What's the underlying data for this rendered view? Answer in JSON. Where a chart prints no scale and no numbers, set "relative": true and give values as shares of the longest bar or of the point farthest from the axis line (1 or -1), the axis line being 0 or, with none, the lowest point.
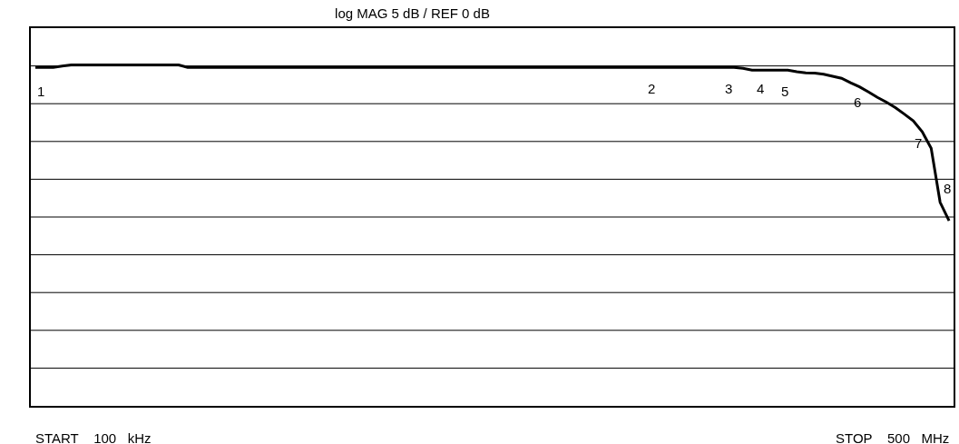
{
  "chart_data": {
    "type": "line",
    "title": "log MAG 5 dB / REF 0 dB",
    "relative": true,
    "categories": [
      null,
      null,
      null,
      null,
      null,
      null,
      null,
      null,
      null,
      null,
      null,
      null,
      null,
      null,
      null,
      null,
      null,
      null,
      null,
      null,
      null,
      null,
      null,
      null,
      null,
      null,
      null,
      null,
      null,
      null,
      null,
      null,
      null,
      null,
      null,
      null,
      null,
      null,
      null,
      null,
      null,
      null,
      null,
      null,
      null,
      null,
      null,
      null,
      null,
      null,
      null,
      null,
      null,
      null,
      null,
      null,
      null,
      null,
      null,
      null,
      null,
      null,
      null,
      null,
      null,
      null,
      null,
      null,
      null,
      null,
      null,
      null,
      null,
      null,
      null,
      null,
      null,
      null,
      null,
      null,
      null,
      null,
      null,
      null,
      null,
      null,
      null,
      null,
      null,
      null,
      null,
      null,
      null,
      null,
      null,
      null,
      null,
      null,
      null,
      null,
      null,
      null,
      null
    ],
    "series": [
      {
        "color": "#000000",
        "values": [
          0.993,
          0.993,
          0.993,
          0.997,
          1,
          1,
          1,
          1,
          1,
          1,
          1,
          1,
          1,
          1,
          1,
          1,
          1,
          0.993,
          0.993,
          0.993,
          0.993,
          0.993,
          0.993,
          0.993,
          0.993,
          0.993,
          0.993,
          0.993,
          0.993,
          0.993,
          0.993,
          0.993,
          0.993,
          0.993,
          0.993,
          0.993,
          0.993,
          0.993,
          0.993,
          0.993,
          0.993,
          0.993,
          0.993,
          0.993,
          0.993,
          0.993,
          0.993,
          0.993,
          0.993,
          0.993,
          0.993,
          0.993,
          0.993,
          0.993,
          0.993,
          0.993,
          0.993,
          0.993,
          0.993,
          0.993,
          0.993,
          0.993,
          0.993,
          0.993,
          0.993,
          0.993,
          0.993,
          0.993,
          0.993,
          0.993,
          0.993,
          0.993,
          0.993,
          0.993,
          0.993,
          0.993,
          0.993,
          0.993,
          0.993,
          0.99,
          0.985,
          0.985,
          0.985,
          0.985,
          0.985,
          0.98,
          0.977,
          0.976,
          0.973,
          0.967,
          0.961,
          0.948,
          0.936,
          0.921,
          0.905,
          0.891,
          0.875,
          0.856,
          0.836,
          0.804,
          0.756,
          0.597,
          0.543
        ],
        "name": null
      }
    ],
    "grid": "y",
    "annotations": [
      "START    100   kHz",
      "STOP    500   MHz",
      "1",
      "2",
      "3",
      "4",
      "5",
      "6",
      "7",
      "8"
    ]
  }
}
